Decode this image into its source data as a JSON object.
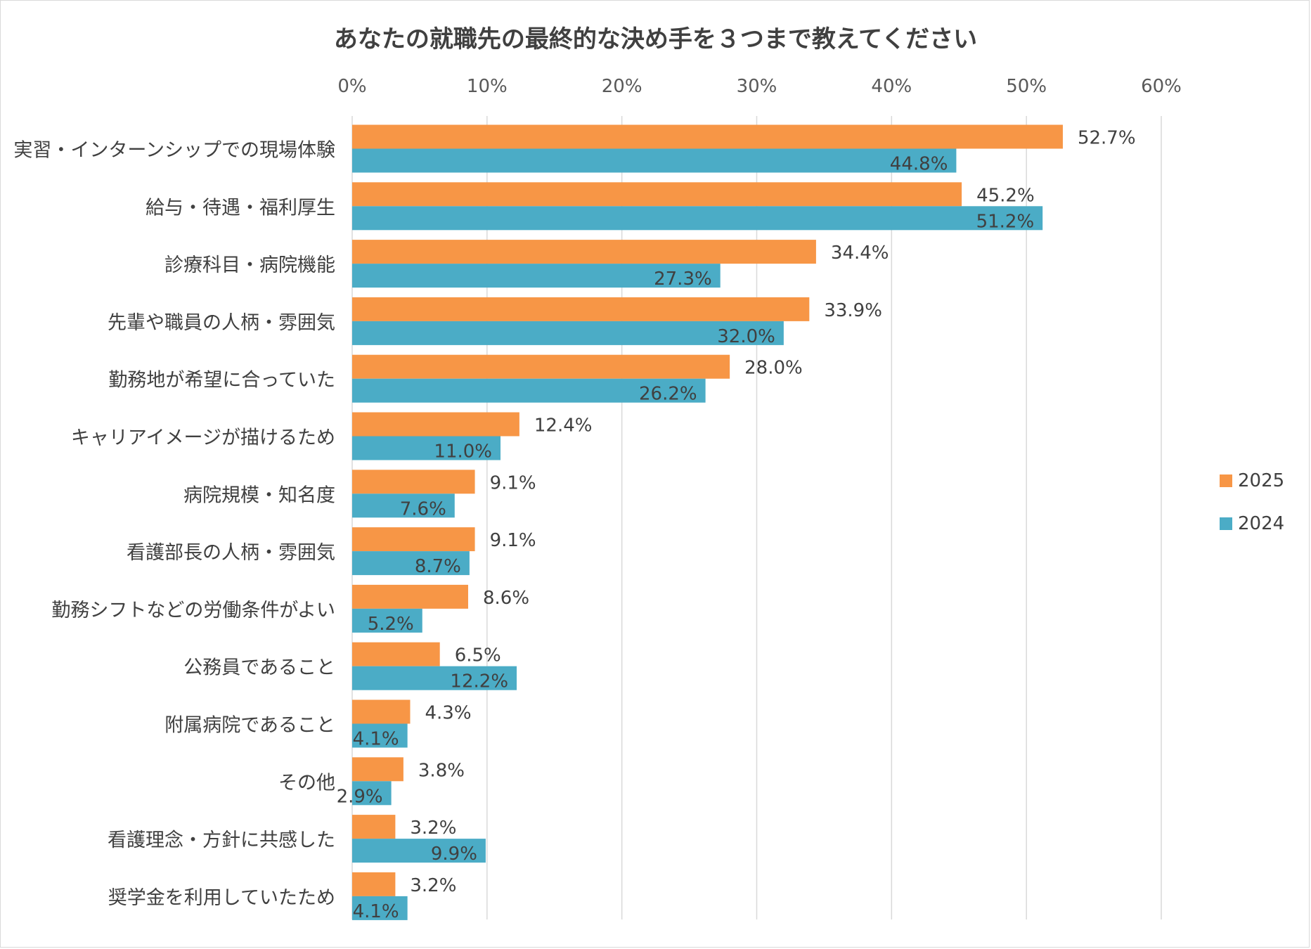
{
  "chart_data": {
    "type": "bar",
    "orientation": "horizontal",
    "title": "あなたの就職先の最終的な決め手を３つまで教えてください",
    "categories": [
      "実習・インターンシップでの現場体験",
      "給与・待遇・福利厚生",
      "診療科目・病院機能",
      "先輩や職員の人柄・雰囲気",
      "勤務地が希望に合っていた",
      "キャリアイメージが描けるため",
      "病院規模・知名度",
      "看護部長の人柄・雰囲気",
      "勤務シフトなどの労働条件がよい",
      "公務員であること",
      "附属病院であること",
      "その他",
      "看護理念・方針に共感した",
      "奨学金を利用していたため"
    ],
    "series": [
      {
        "name": "2025",
        "color": "#f79646",
        "values": [
          52.7,
          45.2,
          34.4,
          33.9,
          28.0,
          12.4,
          9.1,
          9.1,
          8.6,
          6.5,
          4.3,
          3.8,
          3.2,
          3.2
        ],
        "labels": [
          "52.7%",
          "45.2%",
          "34.4%",
          "33.9%",
          "28.0%",
          "12.4%",
          "9.1%",
          "9.1%",
          "8.6%",
          "6.5%",
          "4.3%",
          "3.8%",
          "3.2%",
          "3.2%"
        ]
      },
      {
        "name": "2024",
        "color": "#4bacc6",
        "values": [
          44.8,
          51.2,
          27.3,
          32.0,
          26.2,
          11.0,
          7.6,
          8.7,
          5.2,
          12.2,
          4.1,
          2.9,
          9.9,
          4.1
        ],
        "labels": [
          "44.8%",
          "51.2%",
          "27.3%",
          "32.0%",
          "26.2%",
          "11.0%",
          "7.6%",
          "8.7%",
          "5.2%",
          "12.2%",
          "4.1%",
          "2.9%",
          "9.9%",
          "4.1%"
        ]
      }
    ],
    "xlim": [
      0,
      60
    ],
    "xticks": [
      0,
      10,
      20,
      30,
      40,
      50,
      60
    ],
    "xtick_labels": [
      "0%",
      "10%",
      "20%",
      "30%",
      "40%",
      "50%",
      "60%"
    ],
    "grid": true,
    "legend_position": "right",
    "legend": [
      {
        "label": "2025",
        "color": "#f79646"
      },
      {
        "label": "2024",
        "color": "#4bacc6"
      }
    ]
  }
}
